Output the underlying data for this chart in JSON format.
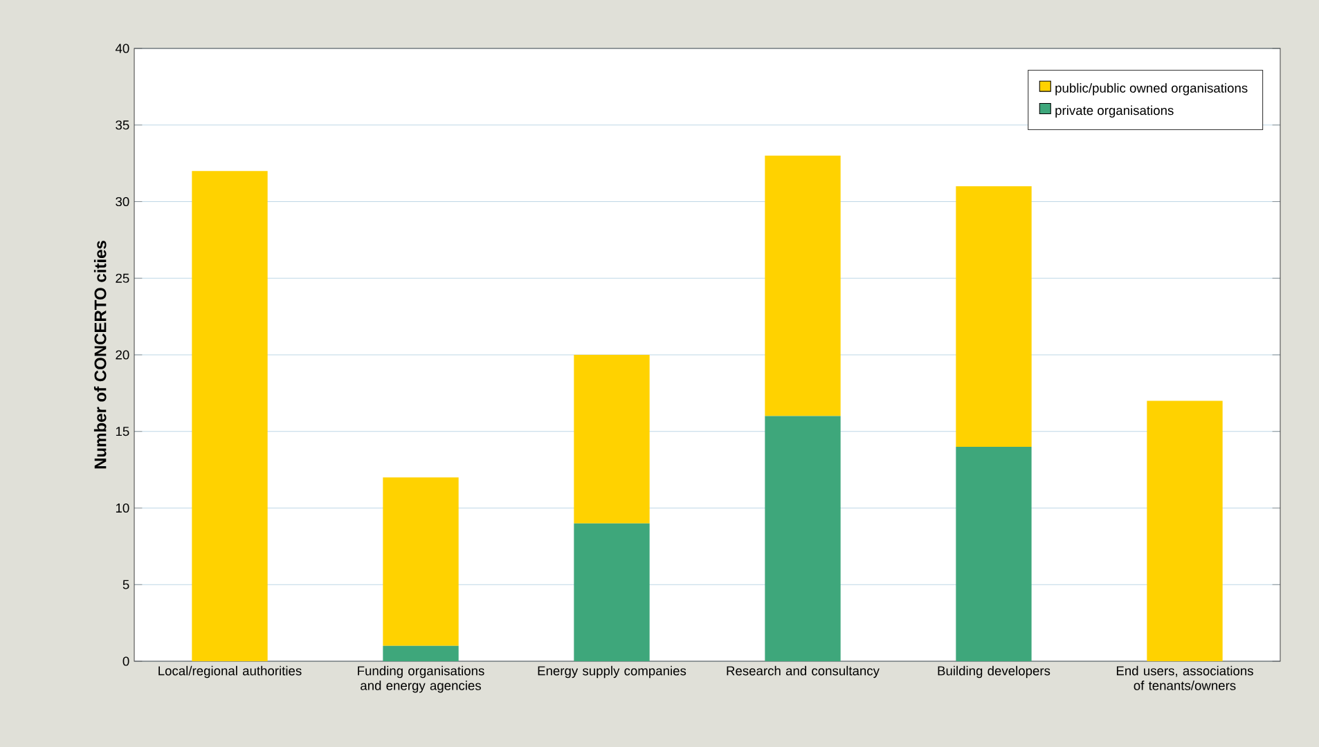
{
  "chart_data": {
    "type": "bar",
    "stacked": true,
    "ylabel": "Number of CONCERTO cities",
    "categories": [
      "Local/regional authorities",
      "Funding organisations and energy agencies",
      "Energy supply companies",
      "Research and consultancy",
      "Building developers",
      "End users, associations of tenants/owners"
    ],
    "series": [
      {
        "name": "private organisations",
        "color": "#3ea77b",
        "values": [
          0,
          1,
          9,
          16,
          14,
          0
        ]
      },
      {
        "name": "public/public owned organisations",
        "color": "#ffd200",
        "values": [
          32,
          11,
          11,
          17,
          17,
          17
        ]
      }
    ],
    "ylim": [
      0,
      40
    ],
    "yticks": [
      0,
      5,
      10,
      15,
      20,
      25,
      30,
      35,
      40
    ],
    "grid": "y",
    "legend": "top right"
  }
}
